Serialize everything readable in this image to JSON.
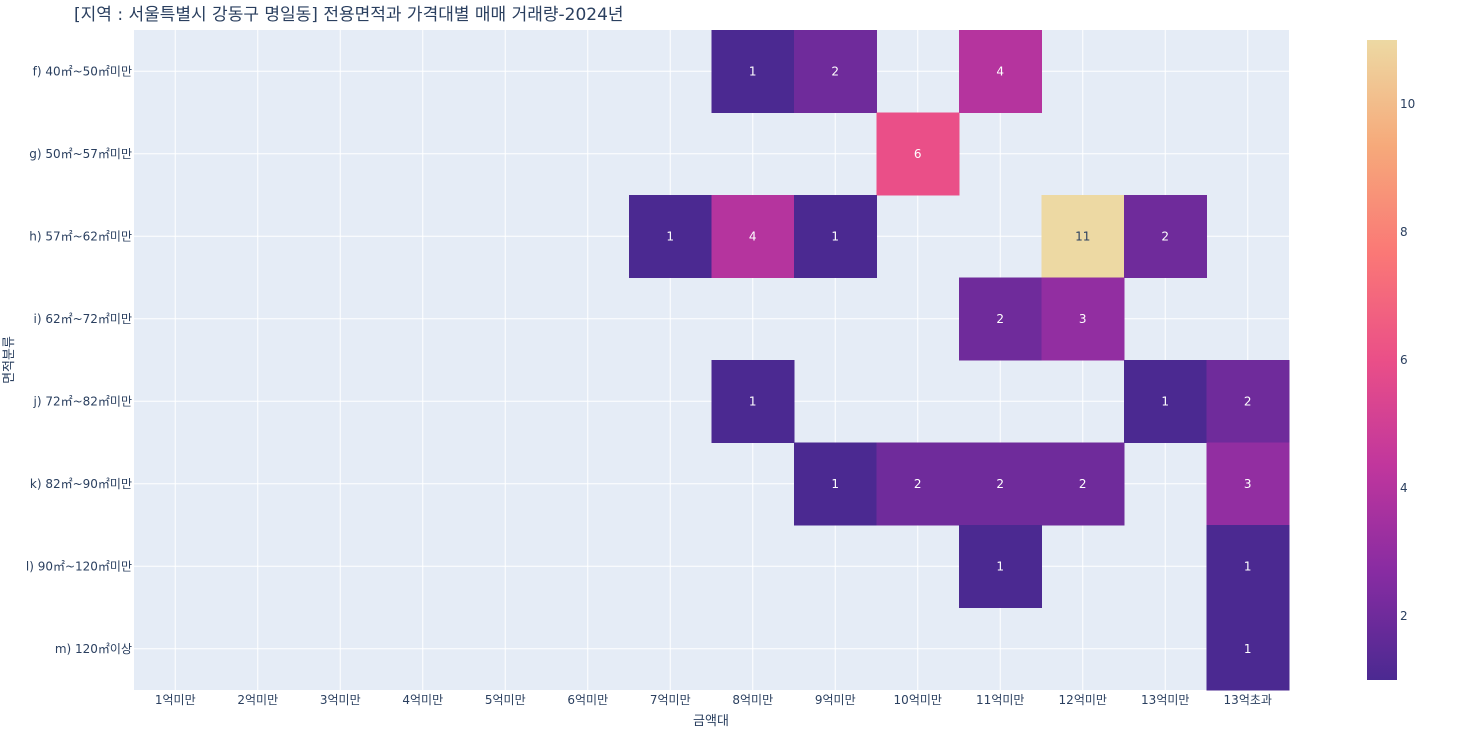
{
  "chart_data": {
    "type": "heatmap",
    "title": "[지역 : 서울특별시 강동구 명일동] 전용면적과 가격대별 매매 거래량-2024년",
    "xlabel": "금액대",
    "ylabel": "면적분류",
    "x_categories": [
      "1억미만",
      "2억미만",
      "3억미만",
      "4억미만",
      "5억미만",
      "6억미만",
      "7억미만",
      "8억미만",
      "9억미만",
      "10억미만",
      "11억미만",
      "12억미만",
      "13억미만",
      "13억초과"
    ],
    "y_categories": [
      "f) 40㎡~50㎡미만",
      "g) 50㎡~57㎡미만",
      "h) 57㎡~62㎡미만",
      "i) 62㎡~72㎡미만",
      "j) 72㎡~82㎡미만",
      "k) 82㎡~90㎡미만",
      "l) 90㎡~120㎡미만",
      "m) 120㎡이상"
    ],
    "cells": [
      {
        "y": "f) 40㎡~50㎡미만",
        "x": "8억미만",
        "value": 1
      },
      {
        "y": "f) 40㎡~50㎡미만",
        "x": "9억미만",
        "value": 2
      },
      {
        "y": "f) 40㎡~50㎡미만",
        "x": "11억미만",
        "value": 4
      },
      {
        "y": "g) 50㎡~57㎡미만",
        "x": "10억미만",
        "value": 6
      },
      {
        "y": "h) 57㎡~62㎡미만",
        "x": "7억미만",
        "value": 1
      },
      {
        "y": "h) 57㎡~62㎡미만",
        "x": "8억미만",
        "value": 4
      },
      {
        "y": "h) 57㎡~62㎡미만",
        "x": "9억미만",
        "value": 1
      },
      {
        "y": "h) 57㎡~62㎡미만",
        "x": "12억미만",
        "value": 11
      },
      {
        "y": "h) 57㎡~62㎡미만",
        "x": "13억미만",
        "value": 2
      },
      {
        "y": "i) 62㎡~72㎡미만",
        "x": "11억미만",
        "value": 2
      },
      {
        "y": "i) 62㎡~72㎡미만",
        "x": "12억미만",
        "value": 3
      },
      {
        "y": "j) 72㎡~82㎡미만",
        "x": "8억미만",
        "value": 1
      },
      {
        "y": "j) 72㎡~82㎡미만",
        "x": "13억미만",
        "value": 1
      },
      {
        "y": "j) 72㎡~82㎡미만",
        "x": "13억초과",
        "value": 2
      },
      {
        "y": "k) 82㎡~90㎡미만",
        "x": "9억미만",
        "value": 1
      },
      {
        "y": "k) 82㎡~90㎡미만",
        "x": "10억미만",
        "value": 2
      },
      {
        "y": "k) 82㎡~90㎡미만",
        "x": "11억미만",
        "value": 2
      },
      {
        "y": "k) 82㎡~90㎡미만",
        "x": "12억미만",
        "value": 2
      },
      {
        "y": "k) 82㎡~90㎡미만",
        "x": "13억초과",
        "value": 3
      },
      {
        "y": "l) 90㎡~120㎡미만",
        "x": "11억미만",
        "value": 1
      },
      {
        "y": "l) 90㎡~120㎡미만",
        "x": "13억초과",
        "value": 1
      },
      {
        "y": "m) 120㎡이상",
        "x": "13억초과",
        "value": 1
      }
    ],
    "colorscale": {
      "name": "plasma",
      "min": 1,
      "max": 11,
      "colors": [
        "#4b2991",
        "#872ca2",
        "#c0369d",
        "#ea4f88",
        "#fa7876",
        "#f6a97a",
        "#edd9a3"
      ],
      "ticks": [
        2,
        4,
        6,
        8,
        10
      ]
    },
    "grid": true,
    "legend": "colorbar-right"
  }
}
